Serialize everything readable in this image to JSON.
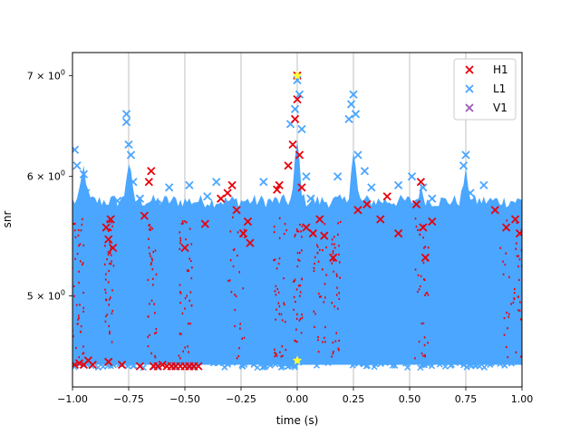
{
  "chart_data": {
    "type": "scatter",
    "title": "",
    "xlabel": "time (s)",
    "ylabel": "snr",
    "xlim": [
      -1.0,
      1.0
    ],
    "ylim": [
      4.35,
      7.25
    ],
    "yscale": "log",
    "grid": "vertical",
    "legend_position": "top-right",
    "x_ticks": [
      {
        "value": -1.0,
        "label": "−1.00"
      },
      {
        "value": -0.75,
        "label": "−0.75"
      },
      {
        "value": -0.5,
        "label": "−0.50"
      },
      {
        "value": -0.25,
        "label": "−0.25"
      },
      {
        "value": 0.0,
        "label": "0.00"
      },
      {
        "value": 0.25,
        "label": "0.25"
      },
      {
        "value": 0.5,
        "label": "0.50"
      },
      {
        "value": 0.75,
        "label": "0.75"
      },
      {
        "value": 1.0,
        "label": "1.00"
      }
    ],
    "y_ticks": [
      {
        "value": 5,
        "base": "5 × 10",
        "exp": "0"
      },
      {
        "value": 6,
        "base": "6 × 10",
        "exp": "0"
      },
      {
        "value": 7,
        "base": "7 × 10",
        "exp": "0"
      }
    ],
    "series": [
      {
        "name": "H1",
        "color": "#e8000b",
        "marker": "x",
        "points": [
          {
            "x": -0.99,
            "y": 4.5
          },
          {
            "x": -0.97,
            "y": 4.51
          },
          {
            "x": -0.95,
            "y": 4.5
          },
          {
            "x": -0.93,
            "y": 4.53
          },
          {
            "x": -0.91,
            "y": 4.5
          },
          {
            "x": -0.85,
            "y": 5.55
          },
          {
            "x": -0.84,
            "y": 5.45
          },
          {
            "x": -0.83,
            "y": 5.62
          },
          {
            "x": -0.82,
            "y": 5.38
          },
          {
            "x": -0.84,
            "y": 4.52
          },
          {
            "x": -0.78,
            "y": 4.5
          },
          {
            "x": -0.7,
            "y": 4.49
          },
          {
            "x": -0.68,
            "y": 5.65
          },
          {
            "x": -0.66,
            "y": 5.95
          },
          {
            "x": -0.65,
            "y": 6.05
          },
          {
            "x": -0.64,
            "y": 4.49
          },
          {
            "x": -0.62,
            "y": 4.49
          },
          {
            "x": -0.6,
            "y": 4.5
          },
          {
            "x": -0.58,
            "y": 4.49
          },
          {
            "x": -0.56,
            "y": 4.49
          },
          {
            "x": -0.54,
            "y": 4.49
          },
          {
            "x": -0.52,
            "y": 4.49
          },
          {
            "x": -0.5,
            "y": 4.49
          },
          {
            "x": -0.48,
            "y": 4.49
          },
          {
            "x": -0.46,
            "y": 4.49
          },
          {
            "x": -0.44,
            "y": 4.49
          },
          {
            "x": -0.5,
            "y": 5.38
          },
          {
            "x": -0.41,
            "y": 5.58
          },
          {
            "x": -0.34,
            "y": 5.8
          },
          {
            "x": -0.31,
            "y": 5.85
          },
          {
            "x": -0.29,
            "y": 5.92
          },
          {
            "x": -0.27,
            "y": 5.7
          },
          {
            "x": -0.24,
            "y": 5.5
          },
          {
            "x": -0.22,
            "y": 5.6
          },
          {
            "x": -0.21,
            "y": 5.42
          },
          {
            "x": -0.09,
            "y": 5.88
          },
          {
            "x": -0.08,
            "y": 5.92
          },
          {
            "x": -0.04,
            "y": 6.1
          },
          {
            "x": -0.02,
            "y": 6.3
          },
          {
            "x": -0.01,
            "y": 6.55
          },
          {
            "x": 0.0,
            "y": 7.0
          },
          {
            "x": 0.0,
            "y": 6.75
          },
          {
            "x": 0.01,
            "y": 6.2
          },
          {
            "x": 0.02,
            "y": 5.9
          },
          {
            "x": 0.04,
            "y": 5.55
          },
          {
            "x": 0.07,
            "y": 5.5
          },
          {
            "x": 0.1,
            "y": 5.62
          },
          {
            "x": 0.12,
            "y": 5.48
          },
          {
            "x": 0.16,
            "y": 5.3
          },
          {
            "x": 0.27,
            "y": 5.7
          },
          {
            "x": 0.31,
            "y": 5.75
          },
          {
            "x": 0.37,
            "y": 5.62
          },
          {
            "x": 0.4,
            "y": 5.82
          },
          {
            "x": 0.45,
            "y": 5.5
          },
          {
            "x": 0.53,
            "y": 5.75
          },
          {
            "x": 0.55,
            "y": 5.95
          },
          {
            "x": 0.56,
            "y": 5.55
          },
          {
            "x": 0.57,
            "y": 5.3
          },
          {
            "x": 0.6,
            "y": 5.6
          },
          {
            "x": 0.88,
            "y": 5.7
          },
          {
            "x": 0.93,
            "y": 5.55
          },
          {
            "x": 0.97,
            "y": 5.62
          },
          {
            "x": 0.99,
            "y": 5.5
          }
        ]
      },
      {
        "name": "L1",
        "color": "#4aa6ff",
        "marker": "x",
        "points": [
          {
            "x": -0.99,
            "y": 6.25
          },
          {
            "x": -0.98,
            "y": 6.1
          },
          {
            "x": -0.95,
            "y": 6.02
          },
          {
            "x": -0.94,
            "y": 5.85
          },
          {
            "x": -0.88,
            "y": 5.7
          },
          {
            "x": -0.8,
            "y": 5.78
          },
          {
            "x": -0.76,
            "y": 6.52
          },
          {
            "x": -0.76,
            "y": 6.6
          },
          {
            "x": -0.75,
            "y": 6.3
          },
          {
            "x": -0.74,
            "y": 6.2
          },
          {
            "x": -0.73,
            "y": 5.95
          },
          {
            "x": -0.7,
            "y": 5.8
          },
          {
            "x": -0.6,
            "y": 5.75
          },
          {
            "x": -0.57,
            "y": 5.9
          },
          {
            "x": -0.48,
            "y": 5.92
          },
          {
            "x": -0.4,
            "y": 5.82
          },
          {
            "x": -0.36,
            "y": 5.95
          },
          {
            "x": -0.15,
            "y": 5.95
          },
          {
            "x": -0.03,
            "y": 6.5
          },
          {
            "x": -0.01,
            "y": 6.65
          },
          {
            "x": 0.0,
            "y": 6.95
          },
          {
            "x": 0.01,
            "y": 6.8
          },
          {
            "x": 0.02,
            "y": 6.45
          },
          {
            "x": 0.04,
            "y": 6.0
          },
          {
            "x": 0.06,
            "y": 5.8
          },
          {
            "x": 0.18,
            "y": 6.0
          },
          {
            "x": 0.23,
            "y": 6.55
          },
          {
            "x": 0.24,
            "y": 6.7
          },
          {
            "x": 0.25,
            "y": 6.8
          },
          {
            "x": 0.26,
            "y": 6.6
          },
          {
            "x": 0.27,
            "y": 6.2
          },
          {
            "x": 0.3,
            "y": 6.05
          },
          {
            "x": 0.33,
            "y": 5.9
          },
          {
            "x": 0.45,
            "y": 5.92
          },
          {
            "x": 0.51,
            "y": 6.0
          },
          {
            "x": 0.56,
            "y": 5.9
          },
          {
            "x": 0.6,
            "y": 5.8
          },
          {
            "x": 0.74,
            "y": 6.1
          },
          {
            "x": 0.75,
            "y": 6.2
          },
          {
            "x": 0.77,
            "y": 5.85
          },
          {
            "x": 0.83,
            "y": 5.92
          },
          {
            "x": 0.9,
            "y": 5.72
          }
        ]
      },
      {
        "name": "V1",
        "color": "#9b59b6",
        "marker": "x",
        "points": []
      }
    ],
    "highlights": [
      {
        "x": 0.0,
        "y": 7.0,
        "color": "#ffff33",
        "marker": "star"
      },
      {
        "x": 0.0,
        "y": 4.53,
        "color": "#ffff33",
        "marker": "star"
      }
    ]
  }
}
